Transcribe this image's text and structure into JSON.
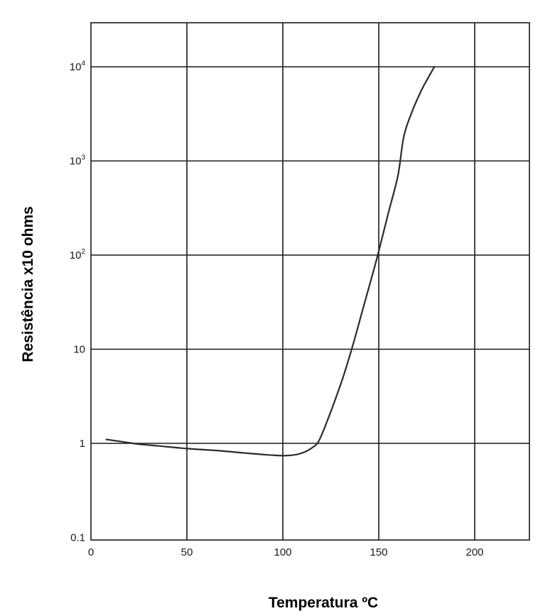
{
  "chart_data": {
    "type": "line",
    "xlabel": "Temperatura ºC",
    "ylabel": "Resistência x10 ohms",
    "xscale": "linear",
    "yscale": "log",
    "xlim": [
      0,
      230
    ],
    "ylim": [
      0.1,
      50000
    ],
    "grid": true,
    "x_ticks": [
      {
        "value": 0,
        "label": "0"
      },
      {
        "value": 50,
        "label": "50"
      },
      {
        "value": 100,
        "label": "100"
      },
      {
        "value": 150,
        "label": "150"
      },
      {
        "value": 200,
        "label": "200"
      }
    ],
    "y_ticks": [
      {
        "value": 0.1,
        "base": "0.1",
        "exp": ""
      },
      {
        "value": 1,
        "base": "1",
        "exp": ""
      },
      {
        "value": 10,
        "base": "10",
        "exp": ""
      },
      {
        "value": 100,
        "base": "10",
        "exp": "2"
      },
      {
        "value": 1000,
        "base": "10",
        "exp": "3"
      },
      {
        "value": 10000,
        "base": "10",
        "exp": "4"
      }
    ],
    "series": [
      {
        "color": "#2b2b2b",
        "x": [
          8,
          15,
          25,
          35,
          50,
          65,
          80,
          90,
          100,
          107,
          112,
          116,
          118,
          120,
          123,
          127,
          132,
          137,
          142,
          147,
          150,
          155,
          160,
          163,
          167,
          172,
          176,
          179
        ],
        "y": [
          1.1,
          1.05,
          0.98,
          0.94,
          0.88,
          0.84,
          0.79,
          0.76,
          0.74,
          0.76,
          0.82,
          0.92,
          1.0,
          1.2,
          1.7,
          2.8,
          5.5,
          12,
          28,
          65,
          110,
          280,
          700,
          1800,
          3200,
          5500,
          7800,
          10000
        ]
      }
    ]
  }
}
